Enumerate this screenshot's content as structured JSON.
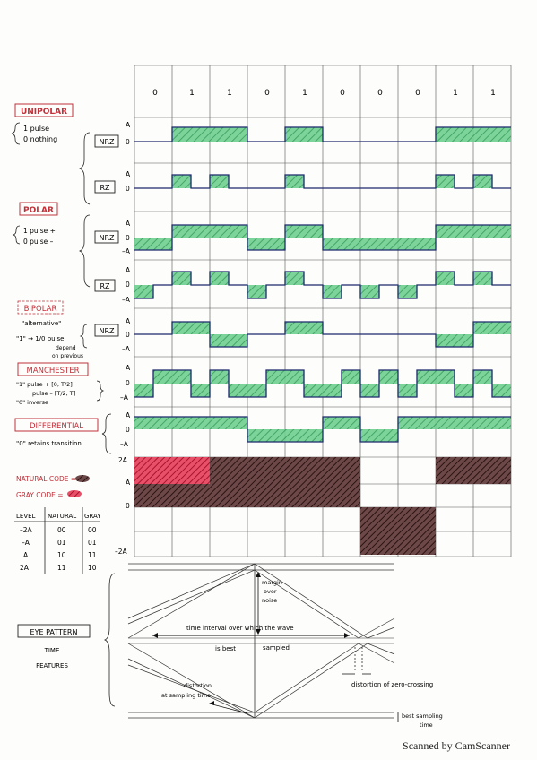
{
  "bits": [
    "0",
    "1",
    "1",
    "0",
    "1",
    "0",
    "0",
    "0",
    "1",
    "1"
  ],
  "sections": {
    "unipolar": {
      "title": "UNIPOLAR",
      "line1": "1  pulse",
      "line2": "0  nothing"
    },
    "polar": {
      "title": "POLAR",
      "line1": "1 pulse +",
      "line2": "0 pulse –"
    },
    "bipolar": {
      "title": "BIPOLAR",
      "line1": "\"alternative\"",
      "line2": "\"1\" → 1/0 pulse",
      "line3": "depend",
      "line4": "on previous"
    },
    "manchester": {
      "title": "MANCHESTER",
      "line1": "\"1\"  pulse + [0, T/2]",
      "line2": "pulse – [T/2, T]",
      "line3": "\"0\"  inverse"
    },
    "differential": {
      "title": "DIFFERENTIAL",
      "line1": "\"0\" retains transition"
    },
    "codes": {
      "natural": "NATURAL CODE =",
      "gray": "GRAY CODE ="
    },
    "eye": {
      "title": "EYE PATTERN",
      "line1": "TIME",
      "line2": "FEATURES"
    }
  },
  "row_tags": {
    "nrz": "NRZ",
    "rz": "RZ"
  },
  "levels": {
    "a": "A",
    "zero": "0",
    "minus_a": "–A",
    "two_a": "2A",
    "minus_two_a": "–2A"
  },
  "code_table": {
    "headers": [
      "LEVEL",
      "NATURAL",
      "GRAY"
    ],
    "rows": [
      [
        "–2A",
        "00",
        "00"
      ],
      [
        "–A",
        "01",
        "01"
      ],
      [
        "A",
        "10",
        "11"
      ],
      [
        "2A",
        "11",
        "10"
      ]
    ]
  },
  "eye_annotations": {
    "margin": [
      "margin",
      "over",
      "noise"
    ],
    "interval": "time interval over which the wave",
    "is_best": "is   best",
    "sampled": "sampled",
    "distortion_zero": "distortion of zero-crossing",
    "distortion_sampling": [
      "distortion",
      "at sampling time"
    ],
    "best_sampling": [
      "best sampling",
      "time"
    ]
  },
  "footer": "Scanned by CamScanner",
  "colors": {
    "green": "#3fb46a",
    "red": "#d9364a",
    "dark": "#4a2a2a",
    "navy": "#1d2a6e",
    "ink": "#c0313a"
  }
}
